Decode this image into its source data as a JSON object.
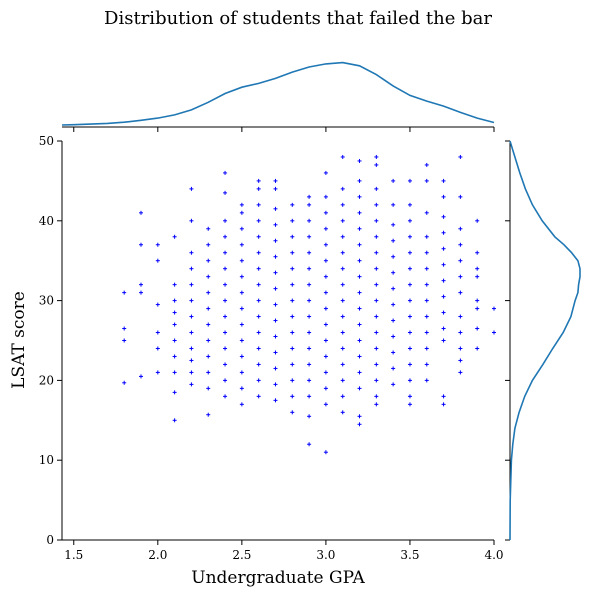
{
  "chart_data": {
    "type": "scatter",
    "title": "Distribution of students that failed the bar",
    "xlabel": "Undergraduate GPA",
    "ylabel": "LSAT score",
    "xlim": [
      1.43,
      4.0
    ],
    "ylim": [
      0,
      50
    ],
    "xticks": [
      "1.5",
      "2.0",
      "2.5",
      "3.0",
      "3.5",
      "4.0"
    ],
    "yticks": [
      "0",
      "10",
      "20",
      "30",
      "40",
      "50"
    ],
    "grid": false,
    "marker": "+",
    "point_color": "#0000ff",
    "kde_color": "#1f77b4",
    "marginal_x_kde": {
      "x": [
        1.43,
        1.5,
        1.6,
        1.7,
        1.8,
        1.9,
        2.0,
        2.1,
        2.2,
        2.3,
        2.4,
        2.5,
        2.6,
        2.7,
        2.8,
        2.9,
        3.0,
        3.1,
        3.2,
        3.3,
        3.4,
        3.5,
        3.6,
        3.7,
        3.8,
        3.9,
        4.0
      ],
      "density": [
        0.0,
        0.005,
        0.014,
        0.026,
        0.045,
        0.074,
        0.11,
        0.16,
        0.24,
        0.36,
        0.5,
        0.6,
        0.66,
        0.74,
        0.84,
        0.92,
        0.97,
        0.99,
        0.94,
        0.8,
        0.62,
        0.47,
        0.38,
        0.3,
        0.2,
        0.11,
        0.04
      ]
    },
    "marginal_y_kde": {
      "y": [
        0,
        5,
        10,
        12,
        14,
        16,
        18,
        20,
        22,
        24,
        26,
        28,
        30,
        31,
        32,
        33,
        34,
        35,
        36,
        37,
        38,
        40,
        42,
        44,
        46,
        48,
        50
      ],
      "density": [
        0.0,
        0.003,
        0.02,
        0.04,
        0.07,
        0.13,
        0.21,
        0.32,
        0.47,
        0.61,
        0.76,
        0.87,
        0.93,
        0.97,
        0.98,
        1.0,
        1.0,
        0.97,
        0.88,
        0.77,
        0.64,
        0.46,
        0.32,
        0.22,
        0.14,
        0.07,
        0.0
      ]
    },
    "points": [
      {
        "x": 1.8,
        "y": 19.7
      },
      {
        "x": 1.8,
        "y": 25
      },
      {
        "x": 1.8,
        "y": 26.5
      },
      {
        "x": 1.8,
        "y": 31
      },
      {
        "x": 1.9,
        "y": 20.5
      },
      {
        "x": 1.9,
        "y": 31
      },
      {
        "x": 1.9,
        "y": 32
      },
      {
        "x": 1.9,
        "y": 37
      },
      {
        "x": 1.9,
        "y": 41
      },
      {
        "x": 2.0,
        "y": 21
      },
      {
        "x": 2.0,
        "y": 24
      },
      {
        "x": 2.0,
        "y": 26
      },
      {
        "x": 2.0,
        "y": 29.5
      },
      {
        "x": 2.0,
        "y": 35
      },
      {
        "x": 2.0,
        "y": 37
      },
      {
        "x": 2.1,
        "y": 15
      },
      {
        "x": 2.1,
        "y": 18.5
      },
      {
        "x": 2.1,
        "y": 21
      },
      {
        "x": 2.1,
        "y": 23
      },
      {
        "x": 2.1,
        "y": 25
      },
      {
        "x": 2.1,
        "y": 27
      },
      {
        "x": 2.1,
        "y": 28.5
      },
      {
        "x": 2.1,
        "y": 30
      },
      {
        "x": 2.1,
        "y": 32
      },
      {
        "x": 2.1,
        "y": 38
      },
      {
        "x": 2.2,
        "y": 19.5
      },
      {
        "x": 2.2,
        "y": 21
      },
      {
        "x": 2.2,
        "y": 22.5
      },
      {
        "x": 2.2,
        "y": 24
      },
      {
        "x": 2.2,
        "y": 26
      },
      {
        "x": 2.2,
        "y": 28
      },
      {
        "x": 2.2,
        "y": 30
      },
      {
        "x": 2.2,
        "y": 32
      },
      {
        "x": 2.2,
        "y": 34
      },
      {
        "x": 2.2,
        "y": 36
      },
      {
        "x": 2.2,
        "y": 40
      },
      {
        "x": 2.2,
        "y": 44
      },
      {
        "x": 2.3,
        "y": 15.7
      },
      {
        "x": 2.3,
        "y": 19
      },
      {
        "x": 2.3,
        "y": 21
      },
      {
        "x": 2.3,
        "y": 23
      },
      {
        "x": 2.3,
        "y": 25
      },
      {
        "x": 2.3,
        "y": 27
      },
      {
        "x": 2.3,
        "y": 29
      },
      {
        "x": 2.3,
        "y": 31
      },
      {
        "x": 2.3,
        "y": 33
      },
      {
        "x": 2.3,
        "y": 35
      },
      {
        "x": 2.3,
        "y": 37
      },
      {
        "x": 2.3,
        "y": 39
      },
      {
        "x": 2.4,
        "y": 18
      },
      {
        "x": 2.4,
        "y": 20
      },
      {
        "x": 2.4,
        "y": 22
      },
      {
        "x": 2.4,
        "y": 24
      },
      {
        "x": 2.4,
        "y": 26
      },
      {
        "x": 2.4,
        "y": 28
      },
      {
        "x": 2.4,
        "y": 30
      },
      {
        "x": 2.4,
        "y": 32
      },
      {
        "x": 2.4,
        "y": 34
      },
      {
        "x": 2.4,
        "y": 36
      },
      {
        "x": 2.4,
        "y": 38
      },
      {
        "x": 2.4,
        "y": 40
      },
      {
        "x": 2.4,
        "y": 43.5
      },
      {
        "x": 2.4,
        "y": 46
      },
      {
        "x": 2.5,
        "y": 17
      },
      {
        "x": 2.5,
        "y": 19
      },
      {
        "x": 2.5,
        "y": 21
      },
      {
        "x": 2.5,
        "y": 23
      },
      {
        "x": 2.5,
        "y": 25
      },
      {
        "x": 2.5,
        "y": 27
      },
      {
        "x": 2.5,
        "y": 29
      },
      {
        "x": 2.5,
        "y": 31
      },
      {
        "x": 2.5,
        "y": 33
      },
      {
        "x": 2.5,
        "y": 35
      },
      {
        "x": 2.5,
        "y": 37
      },
      {
        "x": 2.5,
        "y": 39
      },
      {
        "x": 2.5,
        "y": 41
      },
      {
        "x": 2.5,
        "y": 42
      },
      {
        "x": 2.6,
        "y": 18
      },
      {
        "x": 2.6,
        "y": 20
      },
      {
        "x": 2.6,
        "y": 22
      },
      {
        "x": 2.6,
        "y": 24
      },
      {
        "x": 2.6,
        "y": 26
      },
      {
        "x": 2.6,
        "y": 28
      },
      {
        "x": 2.6,
        "y": 30
      },
      {
        "x": 2.6,
        "y": 32
      },
      {
        "x": 2.6,
        "y": 34
      },
      {
        "x": 2.6,
        "y": 36
      },
      {
        "x": 2.6,
        "y": 38
      },
      {
        "x": 2.6,
        "y": 40
      },
      {
        "x": 2.6,
        "y": 42
      },
      {
        "x": 2.6,
        "y": 44
      },
      {
        "x": 2.6,
        "y": 45
      },
      {
        "x": 2.7,
        "y": 17.5
      },
      {
        "x": 2.7,
        "y": 19.5
      },
      {
        "x": 2.7,
        "y": 21.5
      },
      {
        "x": 2.7,
        "y": 23.5
      },
      {
        "x": 2.7,
        "y": 25.5
      },
      {
        "x": 2.7,
        "y": 27.5
      },
      {
        "x": 2.7,
        "y": 29.5
      },
      {
        "x": 2.7,
        "y": 31.5
      },
      {
        "x": 2.7,
        "y": 33.5
      },
      {
        "x": 2.7,
        "y": 35.5
      },
      {
        "x": 2.7,
        "y": 37.5
      },
      {
        "x": 2.7,
        "y": 39.5
      },
      {
        "x": 2.7,
        "y": 41.5
      },
      {
        "x": 2.7,
        "y": 44
      },
      {
        "x": 2.7,
        "y": 45
      },
      {
        "x": 2.8,
        "y": 16
      },
      {
        "x": 2.8,
        "y": 18
      },
      {
        "x": 2.8,
        "y": 20
      },
      {
        "x": 2.8,
        "y": 22
      },
      {
        "x": 2.8,
        "y": 24
      },
      {
        "x": 2.8,
        "y": 26
      },
      {
        "x": 2.8,
        "y": 28
      },
      {
        "x": 2.8,
        "y": 30
      },
      {
        "x": 2.8,
        "y": 32
      },
      {
        "x": 2.8,
        "y": 34
      },
      {
        "x": 2.8,
        "y": 36
      },
      {
        "x": 2.8,
        "y": 38
      },
      {
        "x": 2.8,
        "y": 40
      },
      {
        "x": 2.8,
        "y": 42
      },
      {
        "x": 2.9,
        "y": 12
      },
      {
        "x": 2.9,
        "y": 15.5
      },
      {
        "x": 2.9,
        "y": 18
      },
      {
        "x": 2.9,
        "y": 20
      },
      {
        "x": 2.9,
        "y": 22
      },
      {
        "x": 2.9,
        "y": 24
      },
      {
        "x": 2.9,
        "y": 26
      },
      {
        "x": 2.9,
        "y": 28
      },
      {
        "x": 2.9,
        "y": 30
      },
      {
        "x": 2.9,
        "y": 32
      },
      {
        "x": 2.9,
        "y": 34
      },
      {
        "x": 2.9,
        "y": 36
      },
      {
        "x": 2.9,
        "y": 38
      },
      {
        "x": 2.9,
        "y": 40
      },
      {
        "x": 2.9,
        "y": 42
      },
      {
        "x": 2.9,
        "y": 43
      },
      {
        "x": 3.0,
        "y": 11
      },
      {
        "x": 3.0,
        "y": 17
      },
      {
        "x": 3.0,
        "y": 19
      },
      {
        "x": 3.0,
        "y": 21
      },
      {
        "x": 3.0,
        "y": 23
      },
      {
        "x": 3.0,
        "y": 25
      },
      {
        "x": 3.0,
        "y": 27
      },
      {
        "x": 3.0,
        "y": 29
      },
      {
        "x": 3.0,
        "y": 31
      },
      {
        "x": 3.0,
        "y": 33
      },
      {
        "x": 3.0,
        "y": 35
      },
      {
        "x": 3.0,
        "y": 37
      },
      {
        "x": 3.0,
        "y": 39
      },
      {
        "x": 3.0,
        "y": 41
      },
      {
        "x": 3.0,
        "y": 43
      },
      {
        "x": 3.0,
        "y": 46
      },
      {
        "x": 3.1,
        "y": 16
      },
      {
        "x": 3.1,
        "y": 18
      },
      {
        "x": 3.1,
        "y": 20
      },
      {
        "x": 3.1,
        "y": 22
      },
      {
        "x": 3.1,
        "y": 24
      },
      {
        "x": 3.1,
        "y": 26
      },
      {
        "x": 3.1,
        "y": 28
      },
      {
        "x": 3.1,
        "y": 30
      },
      {
        "x": 3.1,
        "y": 32
      },
      {
        "x": 3.1,
        "y": 34
      },
      {
        "x": 3.1,
        "y": 36
      },
      {
        "x": 3.1,
        "y": 38
      },
      {
        "x": 3.1,
        "y": 40
      },
      {
        "x": 3.1,
        "y": 42
      },
      {
        "x": 3.1,
        "y": 44
      },
      {
        "x": 3.1,
        "y": 48
      },
      {
        "x": 3.2,
        "y": 14.5
      },
      {
        "x": 3.2,
        "y": 15.5
      },
      {
        "x": 3.2,
        "y": 19
      },
      {
        "x": 3.2,
        "y": 21
      },
      {
        "x": 3.2,
        "y": 23
      },
      {
        "x": 3.2,
        "y": 25
      },
      {
        "x": 3.2,
        "y": 27
      },
      {
        "x": 3.2,
        "y": 29
      },
      {
        "x": 3.2,
        "y": 31
      },
      {
        "x": 3.2,
        "y": 33
      },
      {
        "x": 3.2,
        "y": 35
      },
      {
        "x": 3.2,
        "y": 37
      },
      {
        "x": 3.2,
        "y": 39
      },
      {
        "x": 3.2,
        "y": 41
      },
      {
        "x": 3.2,
        "y": 43
      },
      {
        "x": 3.2,
        "y": 45
      },
      {
        "x": 3.2,
        "y": 47.5
      },
      {
        "x": 3.3,
        "y": 17
      },
      {
        "x": 3.3,
        "y": 18
      },
      {
        "x": 3.3,
        "y": 20
      },
      {
        "x": 3.3,
        "y": 22
      },
      {
        "x": 3.3,
        "y": 24
      },
      {
        "x": 3.3,
        "y": 26
      },
      {
        "x": 3.3,
        "y": 28
      },
      {
        "x": 3.3,
        "y": 30
      },
      {
        "x": 3.3,
        "y": 32
      },
      {
        "x": 3.3,
        "y": 34
      },
      {
        "x": 3.3,
        "y": 36
      },
      {
        "x": 3.3,
        "y": 38
      },
      {
        "x": 3.3,
        "y": 40
      },
      {
        "x": 3.3,
        "y": 42
      },
      {
        "x": 3.3,
        "y": 44
      },
      {
        "x": 3.3,
        "y": 47
      },
      {
        "x": 3.3,
        "y": 48
      },
      {
        "x": 3.4,
        "y": 19.5
      },
      {
        "x": 3.4,
        "y": 21.5
      },
      {
        "x": 3.4,
        "y": 23.5
      },
      {
        "x": 3.4,
        "y": 25.5
      },
      {
        "x": 3.4,
        "y": 27.5
      },
      {
        "x": 3.4,
        "y": 29.5
      },
      {
        "x": 3.4,
        "y": 31.5
      },
      {
        "x": 3.4,
        "y": 33.5
      },
      {
        "x": 3.4,
        "y": 35.5
      },
      {
        "x": 3.4,
        "y": 37.5
      },
      {
        "x": 3.4,
        "y": 39.5
      },
      {
        "x": 3.4,
        "y": 42
      },
      {
        "x": 3.4,
        "y": 45
      },
      {
        "x": 3.5,
        "y": 17
      },
      {
        "x": 3.5,
        "y": 18
      },
      {
        "x": 3.5,
        "y": 20
      },
      {
        "x": 3.5,
        "y": 22
      },
      {
        "x": 3.5,
        "y": 24
      },
      {
        "x": 3.5,
        "y": 26
      },
      {
        "x": 3.5,
        "y": 28
      },
      {
        "x": 3.5,
        "y": 30
      },
      {
        "x": 3.5,
        "y": 32
      },
      {
        "x": 3.5,
        "y": 34
      },
      {
        "x": 3.5,
        "y": 36
      },
      {
        "x": 3.5,
        "y": 38
      },
      {
        "x": 3.5,
        "y": 40
      },
      {
        "x": 3.5,
        "y": 42
      },
      {
        "x": 3.5,
        "y": 45
      },
      {
        "x": 3.6,
        "y": 20
      },
      {
        "x": 3.6,
        "y": 22
      },
      {
        "x": 3.6,
        "y": 24
      },
      {
        "x": 3.6,
        "y": 26
      },
      {
        "x": 3.6,
        "y": 28
      },
      {
        "x": 3.6,
        "y": 30
      },
      {
        "x": 3.6,
        "y": 32
      },
      {
        "x": 3.6,
        "y": 34
      },
      {
        "x": 3.6,
        "y": 36
      },
      {
        "x": 3.6,
        "y": 38
      },
      {
        "x": 3.6,
        "y": 41
      },
      {
        "x": 3.6,
        "y": 45
      },
      {
        "x": 3.6,
        "y": 47
      },
      {
        "x": 3.7,
        "y": 17
      },
      {
        "x": 3.7,
        "y": 18
      },
      {
        "x": 3.7,
        "y": 25
      },
      {
        "x": 3.7,
        "y": 26.5
      },
      {
        "x": 3.7,
        "y": 28.5
      },
      {
        "x": 3.7,
        "y": 30.5
      },
      {
        "x": 3.7,
        "y": 32.5
      },
      {
        "x": 3.7,
        "y": 34.5
      },
      {
        "x": 3.7,
        "y": 36.5
      },
      {
        "x": 3.7,
        "y": 38.5
      },
      {
        "x": 3.7,
        "y": 40.5
      },
      {
        "x": 3.7,
        "y": 43
      },
      {
        "x": 3.7,
        "y": 45
      },
      {
        "x": 3.8,
        "y": 21
      },
      {
        "x": 3.8,
        "y": 22.5
      },
      {
        "x": 3.8,
        "y": 24
      },
      {
        "x": 3.8,
        "y": 26
      },
      {
        "x": 3.8,
        "y": 28
      },
      {
        "x": 3.8,
        "y": 31
      },
      {
        "x": 3.8,
        "y": 33
      },
      {
        "x": 3.8,
        "y": 35
      },
      {
        "x": 3.8,
        "y": 37
      },
      {
        "x": 3.8,
        "y": 39
      },
      {
        "x": 3.8,
        "y": 43
      },
      {
        "x": 3.8,
        "y": 48
      },
      {
        "x": 3.9,
        "y": 24
      },
      {
        "x": 3.9,
        "y": 26.5
      },
      {
        "x": 3.9,
        "y": 29
      },
      {
        "x": 3.9,
        "y": 30
      },
      {
        "x": 3.9,
        "y": 33
      },
      {
        "x": 3.9,
        "y": 34
      },
      {
        "x": 3.9,
        "y": 36
      },
      {
        "x": 3.9,
        "y": 40
      },
      {
        "x": 4.0,
        "y": 26
      },
      {
        "x": 4.0,
        "y": 29
      }
    ]
  }
}
